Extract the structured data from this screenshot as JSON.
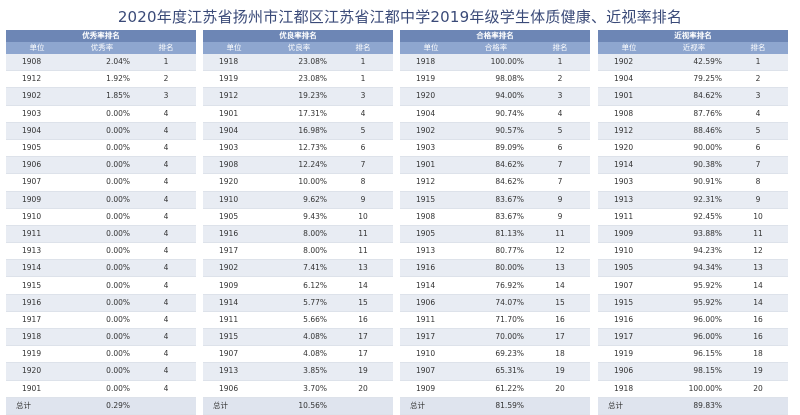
{
  "title": "2020年度江苏省扬州市江都区江苏省江都中学2019年级学生体质健康、近视率排名",
  "tables": [
    {
      "name": "优秀率排名",
      "columns": [
        "单位",
        "优秀率",
        "排名"
      ],
      "rows": [
        [
          "1908",
          "2.04%",
          "1"
        ],
        [
          "1912",
          "1.92%",
          "2"
        ],
        [
          "1902",
          "1.85%",
          "3"
        ],
        [
          "1903",
          "0.00%",
          "4"
        ],
        [
          "1904",
          "0.00%",
          "4"
        ],
        [
          "1905",
          "0.00%",
          "4"
        ],
        [
          "1906",
          "0.00%",
          "4"
        ],
        [
          "1907",
          "0.00%",
          "4"
        ],
        [
          "1909",
          "0.00%",
          "4"
        ],
        [
          "1910",
          "0.00%",
          "4"
        ],
        [
          "1911",
          "0.00%",
          "4"
        ],
        [
          "1913",
          "0.00%",
          "4"
        ],
        [
          "1914",
          "0.00%",
          "4"
        ],
        [
          "1915",
          "0.00%",
          "4"
        ],
        [
          "1916",
          "0.00%",
          "4"
        ],
        [
          "1917",
          "0.00%",
          "4"
        ],
        [
          "1918",
          "0.00%",
          "4"
        ],
        [
          "1919",
          "0.00%",
          "4"
        ],
        [
          "1920",
          "0.00%",
          "4"
        ],
        [
          "1901",
          "0.00%",
          "4"
        ]
      ],
      "total": [
        "总计",
        "0.29%",
        ""
      ]
    },
    {
      "name": "优良率排名",
      "columns": [
        "单位",
        "优良率",
        "排名"
      ],
      "rows": [
        [
          "1918",
          "23.08%",
          "1"
        ],
        [
          "1919",
          "23.08%",
          "1"
        ],
        [
          "1912",
          "19.23%",
          "3"
        ],
        [
          "1901",
          "17.31%",
          "4"
        ],
        [
          "1904",
          "16.98%",
          "5"
        ],
        [
          "1903",
          "12.73%",
          "6"
        ],
        [
          "1908",
          "12.24%",
          "7"
        ],
        [
          "1920",
          "10.00%",
          "8"
        ],
        [
          "1910",
          "9.62%",
          "9"
        ],
        [
          "1905",
          "9.43%",
          "10"
        ],
        [
          "1916",
          "8.00%",
          "11"
        ],
        [
          "1917",
          "8.00%",
          "11"
        ],
        [
          "1902",
          "7.41%",
          "13"
        ],
        [
          "1909",
          "6.12%",
          "14"
        ],
        [
          "1914",
          "5.77%",
          "15"
        ],
        [
          "1911",
          "5.66%",
          "16"
        ],
        [
          "1915",
          "4.08%",
          "17"
        ],
        [
          "1907",
          "4.08%",
          "17"
        ],
        [
          "1913",
          "3.85%",
          "19"
        ],
        [
          "1906",
          "3.70%",
          "20"
        ]
      ],
      "total": [
        "总计",
        "10.56%",
        ""
      ]
    },
    {
      "name": "合格率排名",
      "columns": [
        "单位",
        "合格率",
        "排名"
      ],
      "rows": [
        [
          "1918",
          "100.00%",
          "1"
        ],
        [
          "1919",
          "98.08%",
          "2"
        ],
        [
          "1920",
          "94.00%",
          "3"
        ],
        [
          "1904",
          "90.74%",
          "4"
        ],
        [
          "1902",
          "90.57%",
          "5"
        ],
        [
          "1903",
          "89.09%",
          "6"
        ],
        [
          "1901",
          "84.62%",
          "7"
        ],
        [
          "1912",
          "84.62%",
          "7"
        ],
        [
          "1915",
          "83.67%",
          "9"
        ],
        [
          "1908",
          "83.67%",
          "9"
        ],
        [
          "1905",
          "81.13%",
          "11"
        ],
        [
          "1913",
          "80.77%",
          "12"
        ],
        [
          "1916",
          "80.00%",
          "13"
        ],
        [
          "1914",
          "76.92%",
          "14"
        ],
        [
          "1906",
          "74.07%",
          "15"
        ],
        [
          "1911",
          "71.70%",
          "16"
        ],
        [
          "1917",
          "70.00%",
          "17"
        ],
        [
          "1910",
          "69.23%",
          "18"
        ],
        [
          "1907",
          "65.31%",
          "19"
        ],
        [
          "1909",
          "61.22%",
          "20"
        ]
      ],
      "total": [
        "总计",
        "81.59%",
        ""
      ]
    },
    {
      "name": "近视率排名",
      "columns": [
        "单位",
        "近视率",
        "排名"
      ],
      "rows": [
        [
          "1902",
          "42.59%",
          "1"
        ],
        [
          "1904",
          "79.25%",
          "2"
        ],
        [
          "1901",
          "84.62%",
          "3"
        ],
        [
          "1908",
          "87.76%",
          "4"
        ],
        [
          "1912",
          "88.46%",
          "5"
        ],
        [
          "1920",
          "90.00%",
          "6"
        ],
        [
          "1914",
          "90.38%",
          "7"
        ],
        [
          "1903",
          "90.91%",
          "8"
        ],
        [
          "1913",
          "92.31%",
          "9"
        ],
        [
          "1911",
          "92.45%",
          "10"
        ],
        [
          "1909",
          "93.88%",
          "11"
        ],
        [
          "1910",
          "94.23%",
          "12"
        ],
        [
          "1905",
          "94.34%",
          "13"
        ],
        [
          "1907",
          "95.92%",
          "14"
        ],
        [
          "1915",
          "95.92%",
          "14"
        ],
        [
          "1916",
          "96.00%",
          "16"
        ],
        [
          "1917",
          "96.00%",
          "16"
        ],
        [
          "1919",
          "96.15%",
          "18"
        ],
        [
          "1906",
          "98.15%",
          "19"
        ],
        [
          "1918",
          "100.00%",
          "20"
        ]
      ],
      "total": [
        "总计",
        "89.83%",
        ""
      ]
    }
  ]
}
